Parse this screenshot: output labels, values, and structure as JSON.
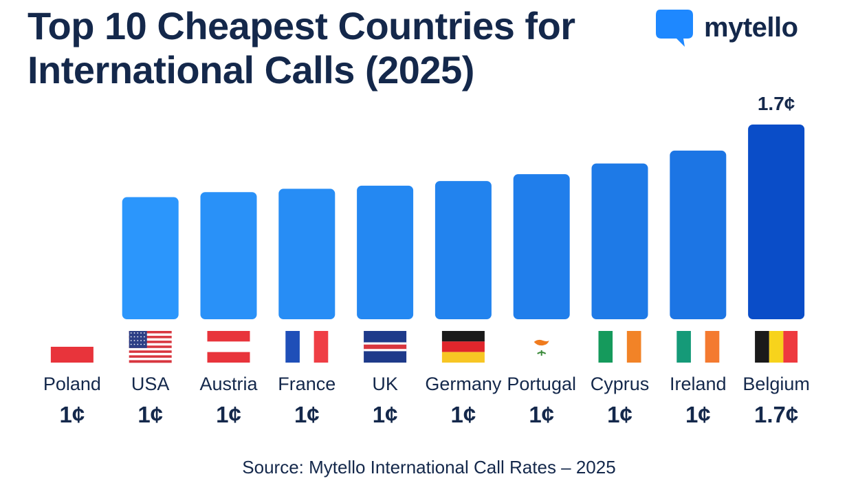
{
  "header": {
    "title_line1": "Top 10 Cheapest Countries for",
    "title_line2": "International Calls (2025)",
    "brand_name": "mytello"
  },
  "source": "Source: Mytello International Call Rates – 2025",
  "colors": {
    "bar_light": "#2d9bff",
    "bar_dark": "#0a4dc8",
    "text": "#14284b"
  },
  "chart_data": {
    "type": "bar",
    "title": "Top 10 Cheapest Countries for International Calls (2025)",
    "unit": "¢",
    "categories": [
      "Poland",
      "USA",
      "Austria",
      "France",
      "UK",
      "Germany",
      "Portugal",
      "Cyprus",
      "Ireland",
      "Belgium"
    ],
    "value_labels": [
      "1¢",
      "1¢",
      "1¢",
      "1¢",
      "1¢",
      "1¢",
      "1¢",
      "1¢",
      "1¢",
      "1.7¢"
    ],
    "values": [
      1.0,
      1.0,
      1.0,
      1.0,
      1.0,
      1.0,
      1.0,
      1.0,
      1.0,
      1.7
    ],
    "top_label": "1.7¢",
    "flags": [
      "poland-flag-icon",
      "usa-flag-icon",
      "austria-flag-icon",
      "france-flag-icon",
      "uk-flag-icon",
      "germany-flag-icon",
      "portugal-flag-icon",
      "cyprus-flag-icon",
      "ireland-flag-icon",
      "belgium-flag-icon"
    ],
    "bar_fill_levels": [
      0.0,
      0.627,
      0.653,
      0.67,
      0.686,
      0.71,
      0.745,
      0.8,
      0.866,
      1.0
    ],
    "xlabel": "",
    "ylabel": "",
    "grid": false,
    "legend": "none"
  }
}
